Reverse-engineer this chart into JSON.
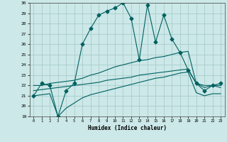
{
  "xlabel": "Humidex (Indice chaleur)",
  "bg_color": "#cce8e8",
  "grid_color": "#aacccc",
  "line_color": "#006060",
  "x_hours": [
    0,
    1,
    2,
    3,
    4,
    5,
    6,
    7,
    8,
    9,
    10,
    11,
    12,
    13,
    14,
    15,
    16,
    17,
    18,
    19,
    20,
    21,
    22,
    23
  ],
  "series1": [
    21.0,
    22.2,
    22.0,
    19.0,
    21.5,
    22.2,
    26.0,
    27.5,
    28.8,
    29.2,
    29.5,
    30.0,
    28.5,
    24.5,
    29.8,
    26.2,
    28.8,
    26.5,
    25.2,
    23.5,
    22.2,
    21.5,
    22.0,
    22.2
  ],
  "series2": [
    22.0,
    22.0,
    22.2,
    22.3,
    22.4,
    22.5,
    22.7,
    23.0,
    23.2,
    23.5,
    23.8,
    24.0,
    24.2,
    24.4,
    24.5,
    24.7,
    24.8,
    25.0,
    25.2,
    25.3,
    22.2,
    22.0,
    22.0,
    22.0
  ],
  "series3": [
    21.5,
    21.6,
    21.7,
    21.8,
    21.9,
    22.0,
    22.1,
    22.2,
    22.3,
    22.5,
    22.6,
    22.7,
    22.8,
    23.0,
    23.1,
    23.2,
    23.3,
    23.4,
    23.5,
    23.6,
    22.2,
    21.8,
    22.0,
    21.8
  ],
  "series4": [
    21.0,
    21.1,
    21.2,
    19.0,
    19.8,
    20.3,
    20.8,
    21.1,
    21.3,
    21.5,
    21.7,
    21.9,
    22.1,
    22.3,
    22.5,
    22.7,
    22.8,
    23.0,
    23.2,
    23.3,
    21.3,
    21.0,
    21.2,
    21.2
  ],
  "ylim": [
    19,
    30
  ],
  "xlim": [
    -0.5,
    23.5
  ],
  "yticks": [
    19,
    20,
    21,
    22,
    23,
    24,
    25,
    26,
    27,
    28,
    29,
    30
  ],
  "xticks": [
    0,
    1,
    2,
    3,
    4,
    5,
    6,
    7,
    8,
    9,
    10,
    11,
    12,
    13,
    14,
    15,
    16,
    17,
    18,
    19,
    20,
    21,
    22,
    23
  ]
}
